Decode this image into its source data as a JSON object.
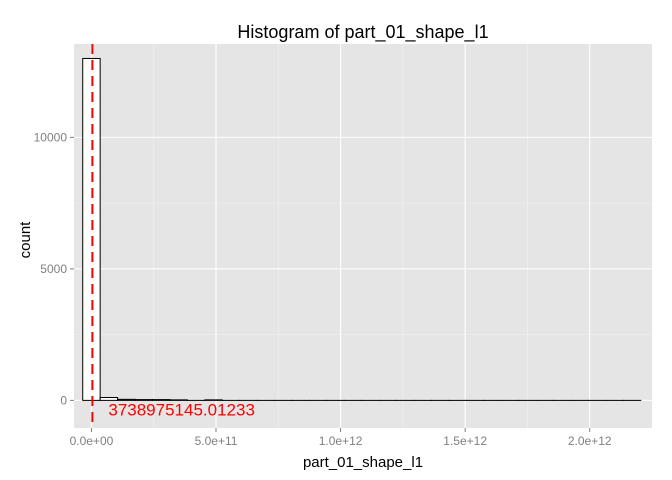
{
  "chart_data": {
    "type": "bar",
    "title": "Histogram of  part_01_shape_l1",
    "xlabel": "part_01_shape_l1",
    "ylabel": "count",
    "xlim": [
      -70000000000,
      2250000000000
    ],
    "ylim": [
      -1050,
      13550
    ],
    "x_ticks": [
      {
        "value": 0,
        "label": "0.0e+00"
      },
      {
        "value": 500000000000,
        "label": "5.0e+11"
      },
      {
        "value": 1000000000000,
        "label": "1.0e+12"
      },
      {
        "value": 1500000000000,
        "label": "1.5e+12"
      },
      {
        "value": 2000000000000,
        "label": "2.0e+12"
      }
    ],
    "y_ticks": [
      {
        "value": 0,
        "label": "0"
      },
      {
        "value": 5000,
        "label": "5000"
      },
      {
        "value": 10000,
        "label": "10000"
      }
    ],
    "bin_width": 70000000000,
    "bins": [
      {
        "x": 0,
        "count": 13000
      },
      {
        "x": 70000000000,
        "count": 110
      },
      {
        "x": 140000000000,
        "count": 40
      },
      {
        "x": 210000000000,
        "count": 30
      },
      {
        "x": 280000000000,
        "count": 30
      },
      {
        "x": 350000000000,
        "count": 20
      },
      {
        "x": 420000000000,
        "count": 0
      },
      {
        "x": 490000000000,
        "count": 20
      },
      {
        "x": 560000000000,
        "count": 0
      },
      {
        "x": 630000000000,
        "count": 0
      },
      {
        "x": 700000000000,
        "count": 0
      },
      {
        "x": 770000000000,
        "count": 0
      },
      {
        "x": 840000000000,
        "count": 0
      },
      {
        "x": 910000000000,
        "count": 0
      },
      {
        "x": 980000000000,
        "count": 0
      },
      {
        "x": 1050000000000,
        "count": 0
      },
      {
        "x": 1120000000000,
        "count": 0
      },
      {
        "x": 1190000000000,
        "count": 0
      },
      {
        "x": 1260000000000,
        "count": 0
      },
      {
        "x": 1330000000000,
        "count": 0
      },
      {
        "x": 1400000000000,
        "count": 0
      },
      {
        "x": 1470000000000,
        "count": 0
      },
      {
        "x": 1540000000000,
        "count": 0
      },
      {
        "x": 1610000000000,
        "count": 0
      },
      {
        "x": 1680000000000,
        "count": 0
      },
      {
        "x": 1750000000000,
        "count": 0
      },
      {
        "x": 1820000000000,
        "count": 0
      },
      {
        "x": 1890000000000,
        "count": 0
      },
      {
        "x": 1960000000000,
        "count": 0
      },
      {
        "x": 2030000000000,
        "count": 0
      },
      {
        "x": 2100000000000,
        "count": 0
      },
      {
        "x": 2170000000000,
        "count": 0
      }
    ],
    "reference_line": {
      "value": 3738975145.01233,
      "label": "3738975145.01233",
      "color": "#ff0000",
      "style": "dashed"
    },
    "colors": {
      "panel_background": "#e5e5e5",
      "grid_major": "#ffffff",
      "grid_minor": "#f2f2f2",
      "bar_outline": "#000000",
      "bar_fill": "#ffffff"
    },
    "grid": true
  }
}
